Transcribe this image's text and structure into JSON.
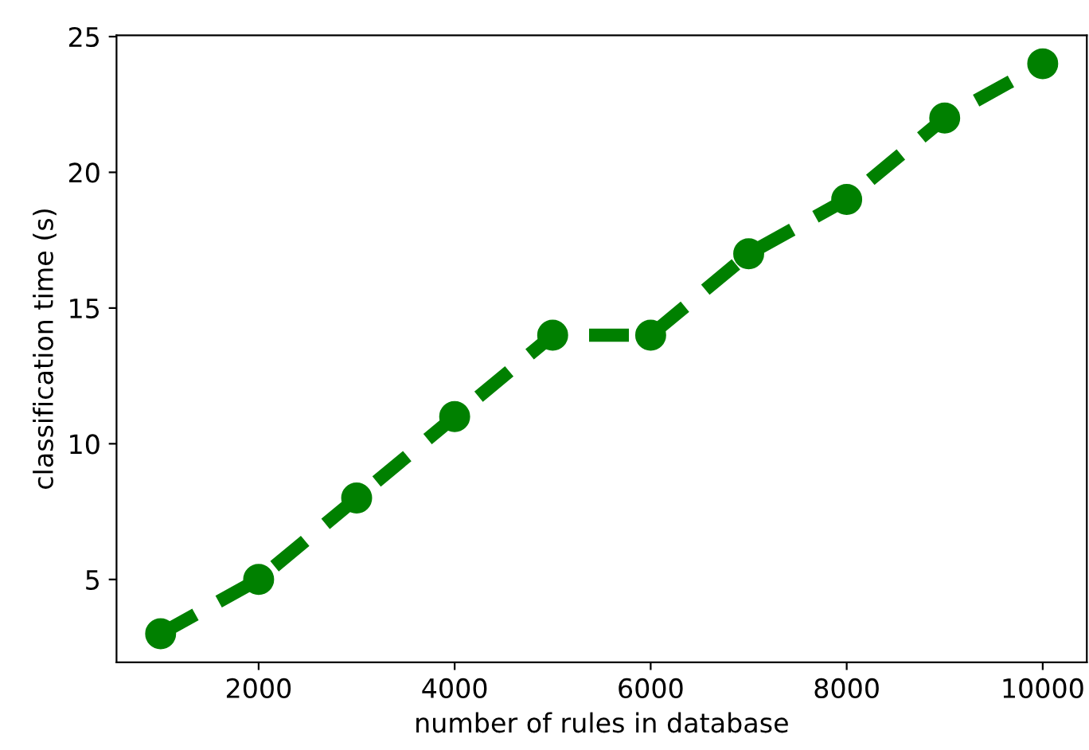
{
  "chart_data": {
    "type": "line",
    "xlabel": "number of rules in database",
    "ylabel": "classification time (s)",
    "x": [
      1000,
      2000,
      3000,
      4000,
      5000,
      6000,
      7000,
      8000,
      9000,
      10000
    ],
    "series": [
      {
        "color": "#008000",
        "values": [
          3,
          5,
          8,
          11,
          14,
          14,
          17,
          19,
          22,
          24
        ]
      }
    ],
    "xlim": [
      550,
      10450
    ],
    "xticks": [
      2000,
      4000,
      6000,
      8000,
      10000
    ],
    "ylim": [
      1.95,
      25.05
    ],
    "yticks": [
      5,
      10,
      15,
      20,
      25
    ],
    "grid": false,
    "marker": "circle",
    "line_style": "dashed"
  }
}
